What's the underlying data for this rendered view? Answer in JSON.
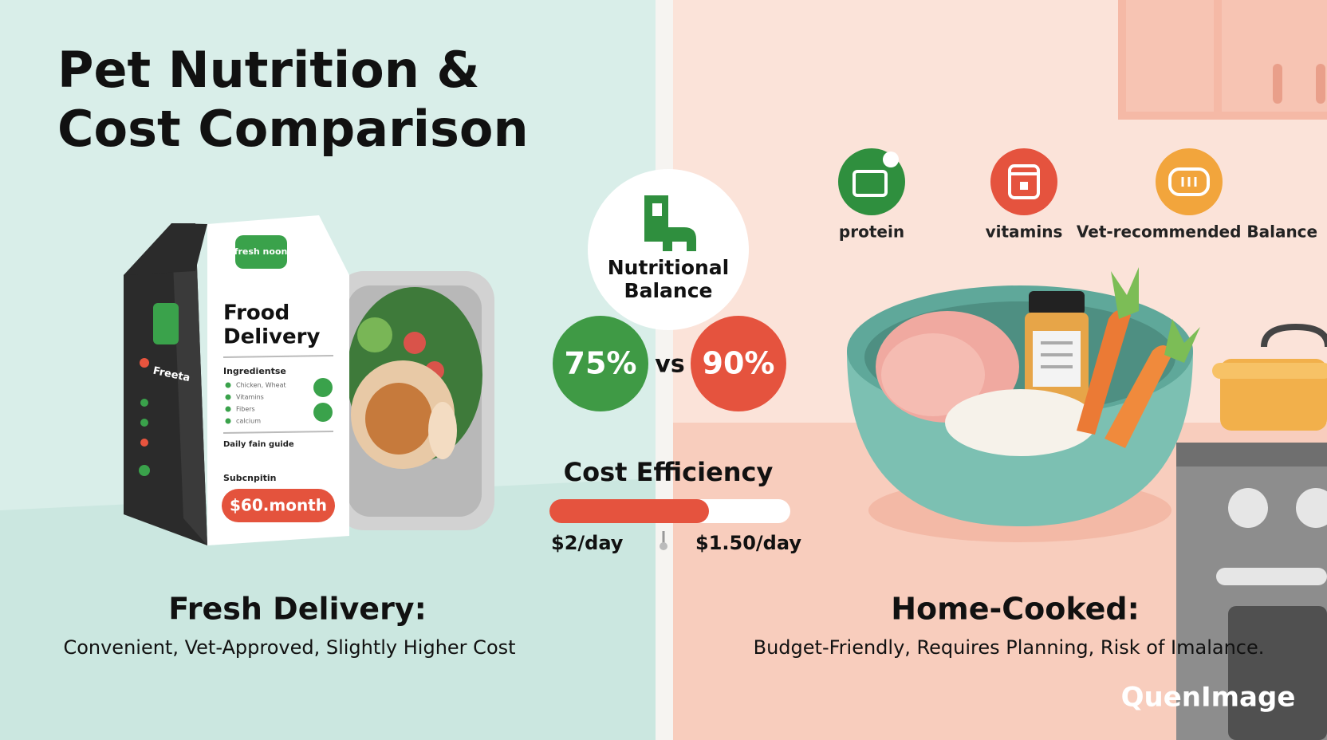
{
  "title": {
    "lines": [
      "Pet Nutrition &",
      "Cost Comparison"
    ]
  },
  "package": {
    "logo": "fresh noon",
    "heading": [
      "Frood",
      "Delivery"
    ],
    "side_label": "Freeta",
    "ingredients_label": "Ingredientse",
    "ingredients": [
      "Chicken, Wheat",
      "Vitamins",
      "Fibers",
      "calcium"
    ],
    "guide": "Daily fain guide",
    "subscription": "Subcnpitin",
    "price": "$60.month"
  },
  "center": {
    "nutrition_label": [
      "Nutritional",
      "Balance"
    ],
    "fresh_score": "75%",
    "versus": "vs",
    "home_score": "90%",
    "cost_label": "Cost Efficiency",
    "fresh_cost": "$2/day",
    "home_cost": "$1.50/day"
  },
  "benefits": [
    {
      "label": "protein"
    },
    {
      "label": "vitamins"
    },
    {
      "label": "Vet-recommended Balance"
    }
  ],
  "fresh": {
    "heading": "Fresh Delivery:",
    "description": "Convenient, Vet-Approved, Slightly Higher Cost"
  },
  "home": {
    "heading": "Home-Cooked:",
    "description": "Budget-Friendly, Requires Planning, Risk of Imalance."
  },
  "watermark": "QuenImage"
}
